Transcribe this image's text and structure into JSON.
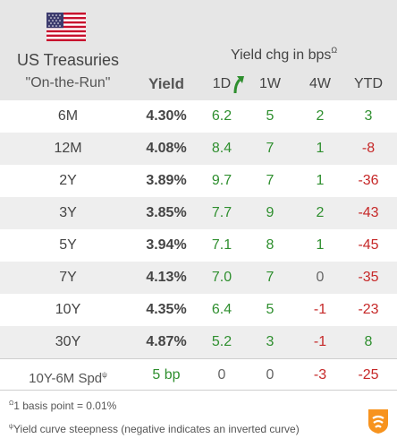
{
  "header": {
    "title_line1": "US Treasuries",
    "title_line2": "\"On-the-Run\"",
    "yield_label": "Yield",
    "chg_label": "Yield chg in bps",
    "chg_sup": "Ω",
    "columns": [
      "1D",
      "1W",
      "4W",
      "YTD"
    ]
  },
  "rows": [
    {
      "label": "6M",
      "yield": "4.30%",
      "d1": "6.2",
      "w1": "5",
      "w4": "2",
      "ytd": "3"
    },
    {
      "label": "12M",
      "yield": "4.08%",
      "d1": "8.4",
      "w1": "7",
      "w4": "1",
      "ytd": "-8"
    },
    {
      "label": "2Y",
      "yield": "3.89%",
      "d1": "9.7",
      "w1": "7",
      "w4": "1",
      "ytd": "-36"
    },
    {
      "label": "3Y",
      "yield": "3.85%",
      "d1": "7.7",
      "w1": "9",
      "w4": "2",
      "ytd": "-43"
    },
    {
      "label": "5Y",
      "yield": "3.94%",
      "d1": "7.1",
      "w1": "8",
      "w4": "1",
      "ytd": "-45"
    },
    {
      "label": "7Y",
      "yield": "4.13%",
      "d1": "7.0",
      "w1": "7",
      "w4": "0",
      "ytd": "-35"
    },
    {
      "label": "10Y",
      "yield": "4.35%",
      "d1": "6.4",
      "w1": "5",
      "w4": "-1",
      "ytd": "-23"
    },
    {
      "label": "30Y",
      "yield": "4.87%",
      "d1": "5.2",
      "w1": "3",
      "w4": "-1",
      "ytd": "8"
    }
  ],
  "spread": {
    "label": "10Y-6M Spd",
    "sup": "ψ",
    "value": "5 bp",
    "d1": "0",
    "w1": "0",
    "w4": "-3",
    "ytd": "-25"
  },
  "footnotes": {
    "note1_sup": "Ω",
    "note1": "1 basis point = 0.01%",
    "note2_sup": "ψ",
    "note2": "Yield curve steepness (negative indicates an inverted curve)"
  },
  "icons": {
    "flag": "us-flag-icon",
    "arrow": "up-arrow-icon",
    "logo": "brand-logo-icon"
  },
  "colors": {
    "positive": "#2f8f2f",
    "negative": "#c62828",
    "header_bg": "#e6e6e6",
    "alt_row": "#eeeeee",
    "logo": "#f7931e"
  }
}
